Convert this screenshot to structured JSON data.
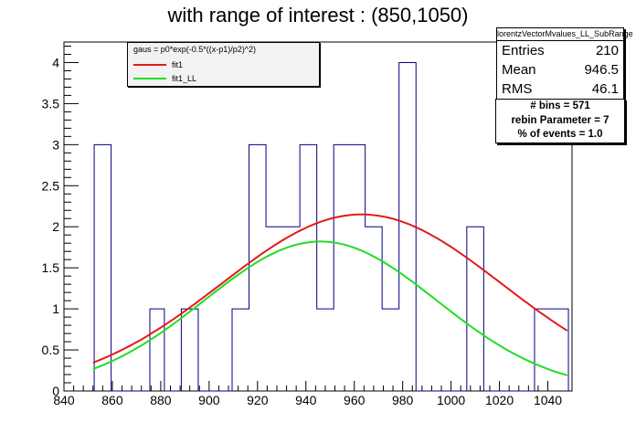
{
  "chart_data": {
    "type": "histogram",
    "title": "with range of interest : (850,1050)",
    "xlim": [
      840,
      1050
    ],
    "ylim": [
      0,
      4.25
    ],
    "x_ticks": [
      840,
      860,
      880,
      900,
      920,
      940,
      960,
      980,
      1000,
      1020,
      1040
    ],
    "y_ticks": [
      0,
      0.5,
      1,
      1.5,
      2,
      2.5,
      3,
      3.5,
      4
    ],
    "bins": [
      {
        "x0": 852.5,
        "x1": 859.5,
        "count": 3
      },
      {
        "x0": 859.5,
        "x1": 875.5,
        "count": 0
      },
      {
        "x0": 875.5,
        "x1": 881.5,
        "count": 1
      },
      {
        "x0": 881.5,
        "x1": 888.5,
        "count": 0
      },
      {
        "x0": 888.5,
        "x1": 895.5,
        "count": 1
      },
      {
        "x0": 895.5,
        "x1": 909.5,
        "count": 0
      },
      {
        "x0": 909.5,
        "x1": 916.5,
        "count": 1
      },
      {
        "x0": 916.5,
        "x1": 923.5,
        "count": 3
      },
      {
        "x0": 923.5,
        "x1": 937.5,
        "count": 2
      },
      {
        "x0": 937.5,
        "x1": 944.5,
        "count": 3
      },
      {
        "x0": 944.5,
        "x1": 951.5,
        "count": 1
      },
      {
        "x0": 951.5,
        "x1": 964.5,
        "count": 3
      },
      {
        "x0": 964.5,
        "x1": 971.5,
        "count": 2
      },
      {
        "x0": 971.5,
        "x1": 978.5,
        "count": 1
      },
      {
        "x0": 978.5,
        "x1": 985.5,
        "count": 4
      },
      {
        "x0": 985.5,
        "x1": 1006.5,
        "count": 0
      },
      {
        "x0": 1006.5,
        "x1": 1013.5,
        "count": 2
      },
      {
        "x0": 1013.5,
        "x1": 1034.5,
        "count": 0
      },
      {
        "x0": 1034.5,
        "x1": 1048.5,
        "count": 1
      }
    ],
    "fits": [
      {
        "name": "fit1",
        "color": "#e41a1a",
        "p0": 2.15,
        "p1": 963,
        "p2": 58,
        "x_range": [
          852,
          1048
        ]
      },
      {
        "name": "fit1_LL",
        "color": "#22dd22",
        "p0": 1.82,
        "p1": 946,
        "p2": 48,
        "x_range": [
          852,
          1048
        ]
      }
    ],
    "legend": {
      "header": "gaus = p0*exp(-0.5*((x-p1)/p2)^2)",
      "entries": [
        "fit1",
        "fit1_LL"
      ],
      "placement": "top-left"
    },
    "stats": {
      "name": "lorentzVectorMvalues_LL_SubRange",
      "entries_label": "Entries",
      "entries": "210",
      "mean_label": "Mean",
      "mean": "946.5",
      "rms_label": "RMS",
      "rms": "46.1"
    },
    "info": {
      "bins": "# bins = 571",
      "rebin": "rebin Parameter = 7",
      "events": "% of events = 1.0"
    },
    "colors": {
      "histogram": "#000080",
      "axis": "#000000"
    }
  }
}
